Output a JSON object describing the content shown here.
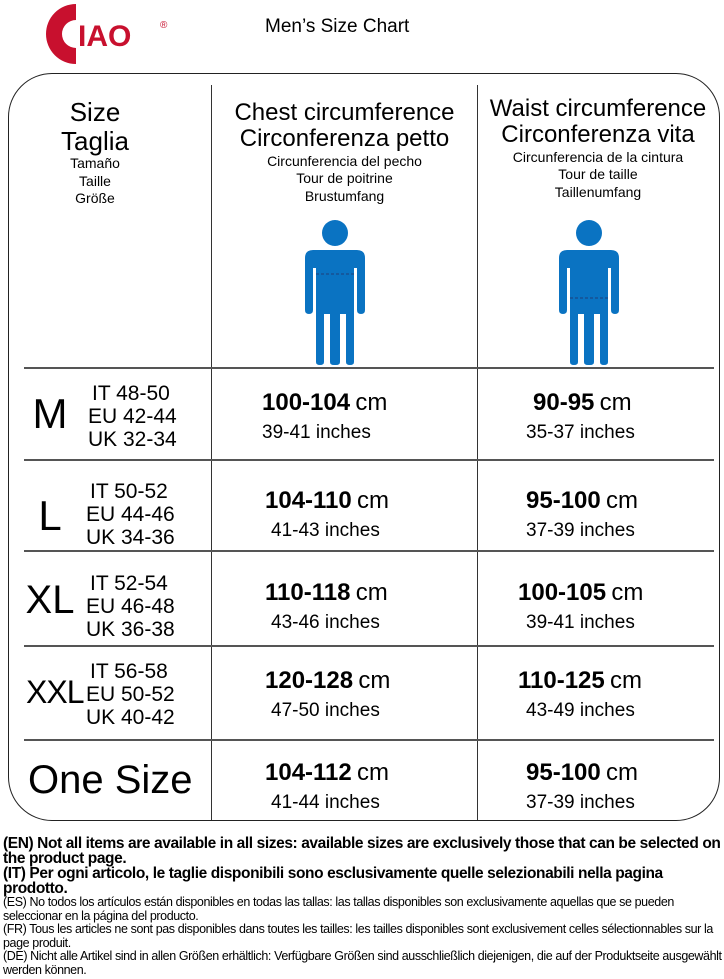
{
  "brand": {
    "logo_text": "CIAO",
    "registered": "®",
    "color": "#c8102e"
  },
  "title": "Men’s Size Chart",
  "figure_color": "#0a73c2",
  "headers": {
    "size": {
      "en": "Size",
      "it": "Taglia",
      "es": "Tamaño",
      "fr": "Taille",
      "de": "Größe"
    },
    "chest": {
      "en": "Chest circumference",
      "it": "Circonferenza petto",
      "es": "Circunferencia del pecho",
      "fr": "Tour de poitrine",
      "de": "Brustumfang"
    },
    "waist": {
      "en": "Waist circumference",
      "it": "Circonferenza vita",
      "es": "Circunferencia de la cintura",
      "fr": "Tour de taille",
      "de": "Taillenumfang"
    }
  },
  "rows": [
    {
      "size": "M",
      "it": "IT 48-50",
      "eu": "EU 42-44",
      "uk": "UK 32-34",
      "chest_cm": "100-104",
      "chest_in": "39-41",
      "waist_cm": "90-95",
      "waist_in": "35-37"
    },
    {
      "size": "L",
      "it": "IT 50-52",
      "eu": "EU 44-46",
      "uk": "UK 34-36",
      "chest_cm": "104-110",
      "chest_in": "41-43",
      "waist_cm": "95-100",
      "waist_in": "37-39"
    },
    {
      "size": "XL",
      "it": "IT 52-54",
      "eu": "EU 46-48",
      "uk": "UK 36-38",
      "chest_cm": "110-118",
      "chest_in": "43-46",
      "waist_cm": "100-105",
      "waist_in": "39-41"
    },
    {
      "size": "XXL",
      "it": "IT 56-58",
      "eu": "EU 50-52",
      "uk": "UK 40-42",
      "chest_cm": "120-128",
      "chest_in": "47-50",
      "waist_cm": "110-125",
      "waist_in": "43-49"
    },
    {
      "size": "One Size",
      "it": "",
      "eu": "",
      "uk": "",
      "chest_cm": "104-112",
      "chest_in": "41-44",
      "waist_cm": "95-100",
      "waist_in": "37-39"
    }
  ],
  "units": {
    "cm": "cm",
    "in": "inches"
  },
  "notes": {
    "en": "(EN) Not all items are available in all sizes: available sizes are exclusively those that can be selected on the product page.",
    "it": "(IT) Per ogni articolo, le taglie disponibili sono esclusivamente quelle selezionabili nella pagina prodotto.",
    "es": "(ES) No todos los artículos están disponibles en todas las tallas: las tallas disponibles son exclusivamente aquellas que se pueden seleccionar en la página del producto.",
    "fr": "(FR) Tous les articles ne sont pas disponibles dans toutes les tailles: les tailles disponibles sont exclusivement celles sélectionnables sur la page produit.",
    "de": "(DE) Nicht alle Artikel sind in allen Größen erhältlich: Verfügbare Größen sind ausschließlich diejenigen, die auf der Produktseite ausgewählt werden können."
  }
}
